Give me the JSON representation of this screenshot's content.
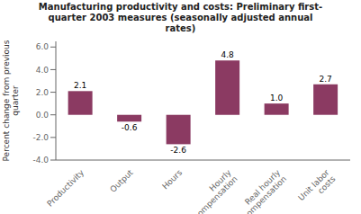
{
  "chart_data": {
    "type": "bar",
    "title": "Manufacturing productivity and costs: Preliminary first-\nquarter 2003 measures (seasonally adjusted annual\nrates)",
    "categories": [
      "Productivity",
      "Output",
      "Hours",
      "Hourly\ncompensation",
      "Real hourly\ncompensation",
      "Unit labor\ncosts"
    ],
    "values": [
      2.1,
      -0.6,
      -2.6,
      4.8,
      1.0,
      2.7
    ],
    "value_labels": [
      "2.1",
      "-0.6",
      "-2.6",
      "4.8",
      "1.0",
      "2.7"
    ],
    "color": "#8B3A62",
    "ylabel": "Percent change from previous\nquarter",
    "ylim": [
      -4.0,
      6.5
    ],
    "yticks": [
      {
        "value": -4.0,
        "label": "-4.0"
      },
      {
        "value": -2.0,
        "label": "-2.0"
      },
      {
        "value": 0.0,
        "label": "0.0"
      },
      {
        "value": 2.0,
        "label": "2.0"
      },
      {
        "value": 4.0,
        "label": "4.0"
      },
      {
        "value": 6.0,
        "label": "6.0"
      }
    ],
    "data_labels": true,
    "grid": false
  }
}
